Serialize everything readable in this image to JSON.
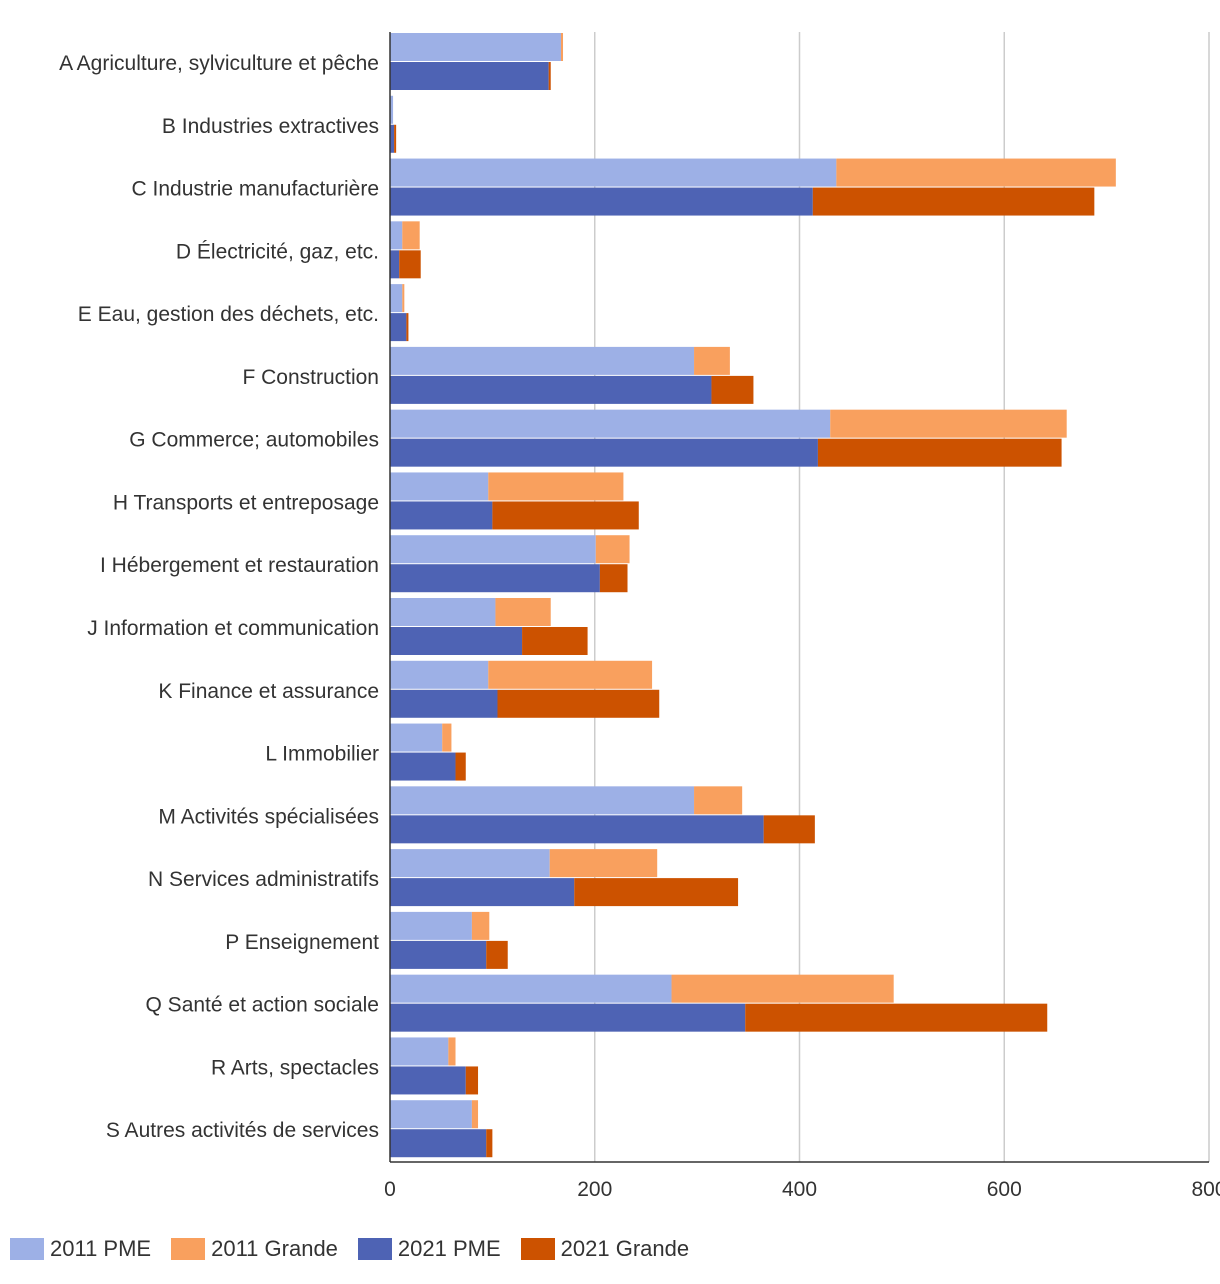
{
  "chart_data": {
    "type": "bar",
    "orientation": "horizontal",
    "stacked": true,
    "categories": [
      "A Agriculture, sylviculture et pêche",
      "B Industries extractives",
      "C Industrie manufacturière",
      "D Électricité, gaz, etc.",
      "E Eau, gestion des déchets, etc.",
      "F Construction",
      "G Commerce; automobiles",
      "H Transports et entreposage",
      "I Hébergement et restauration",
      "J Information et communication",
      "K Finance et assurance",
      "L Immobilier",
      "M Activités spécialisées",
      "N Services administratifs",
      "P Enseignement",
      "Q Santé et action sociale",
      "R Arts, spectacles",
      "S Autres activités de services"
    ],
    "groups": [
      {
        "year": "2011",
        "series": [
          {
            "name": "2011 PME",
            "color": "#9DB0E6",
            "values": [
              167,
              3,
              436,
              12,
              12,
              297,
              430,
              96,
              201,
              103,
              96,
              51,
              297,
              156,
              80,
              275,
              57,
              80
            ]
          },
          {
            "name": "2011 Grande",
            "color": "#F9A05E",
            "values": [
              2,
              0,
              273,
              17,
              2,
              35,
              231,
              132,
              33,
              54,
              160,
              9,
              47,
              105,
              17,
              217,
              7,
              6
            ]
          }
        ]
      },
      {
        "year": "2021",
        "series": [
          {
            "name": "2021 PME",
            "color": "#4E63B4",
            "values": [
              155,
              4,
              413,
              9,
              16,
              314,
              418,
              100,
              205,
              129,
              105,
              64,
              365,
              180,
              94,
              347,
              74,
              94
            ]
          },
          {
            "name": "2021 Grande",
            "color": "#CC5200",
            "values": [
              2,
              2,
              275,
              21,
              2,
              41,
              238,
              143,
              27,
              64,
              158,
              10,
              50,
              160,
              21,
              295,
              12,
              6
            ]
          }
        ]
      }
    ],
    "xlim": [
      0,
      800
    ],
    "xticks": [
      "0",
      "200",
      "400",
      "600",
      "800"
    ],
    "grid": true,
    "legend_position": "bottom-left",
    "title": "",
    "xlabel": "",
    "ylabel": ""
  },
  "legend": {
    "items": [
      {
        "label": "2011 PME",
        "color": "#9DB0E6"
      },
      {
        "label": "2011 Grande",
        "color": "#F9A05E"
      },
      {
        "label": "2021 PME",
        "color": "#4E63B4"
      },
      {
        "label": "2021 Grande",
        "color": "#CC5200"
      }
    ]
  }
}
